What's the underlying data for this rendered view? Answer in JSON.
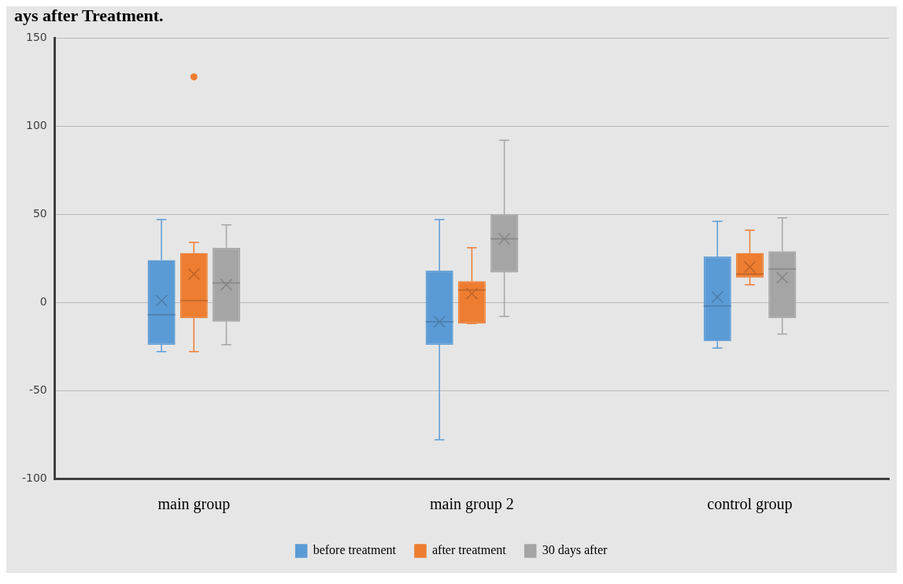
{
  "chart_data": {
    "type": "box",
    "title": "ays after Treatment.",
    "categories": [
      "main group",
      "main group 2",
      "control group"
    ],
    "ylim": [
      -100,
      150
    ],
    "yticks": [
      -100,
      -50,
      0,
      50,
      100,
      150
    ],
    "grid": "y",
    "legend": "bottom",
    "series": [
      {
        "name": "before treatment",
        "color": "#5b9bd5",
        "boxes": [
          {
            "low": -28,
            "q1": -24,
            "median": -7,
            "q3": 24,
            "high": 47,
            "mean": 1
          },
          {
            "low": -78,
            "q1": -24,
            "median": -11,
            "q3": 18,
            "high": 47,
            "mean": -11
          },
          {
            "low": -26,
            "q1": -22,
            "median": -2,
            "q3": 26,
            "high": 46,
            "mean": 3
          }
        ]
      },
      {
        "name": "after treatment",
        "color": "#ed7d31",
        "boxes": [
          {
            "low": -28,
            "q1": -9,
            "median": 1,
            "q3": 28,
            "high": 34,
            "mean": 16,
            "outliers": [
              128
            ]
          },
          {
            "low": -12,
            "q1": -12,
            "median": 7,
            "q3": 12,
            "high": 31,
            "mean": 5
          },
          {
            "low": 10,
            "q1": 14,
            "median": 16,
            "q3": 28,
            "high": 41,
            "mean": 20
          }
        ]
      },
      {
        "name": "30 days after",
        "color": "#a5a5a5",
        "boxes": [
          {
            "low": -24,
            "q1": -11,
            "median": 11,
            "q3": 31,
            "high": 44,
            "mean": 10
          },
          {
            "low": -8,
            "q1": 17,
            "median": 36,
            "q3": 50,
            "high": 92,
            "mean": 36
          },
          {
            "low": -18,
            "q1": -9,
            "median": 19,
            "q3": 29,
            "high": 48,
            "mean": 14
          }
        ]
      }
    ]
  }
}
